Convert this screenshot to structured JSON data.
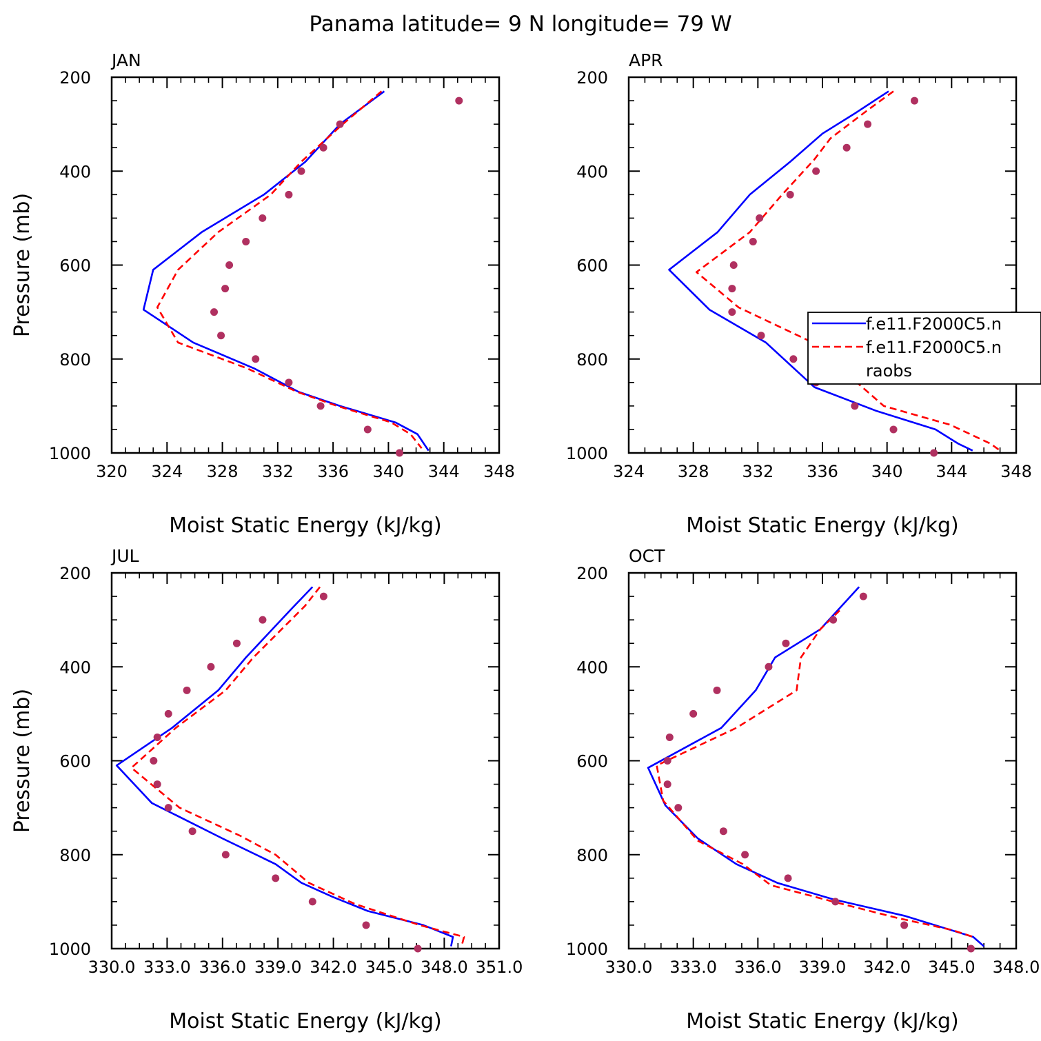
{
  "title": "Panama  latitude= 9 N longitude= 79 W",
  "chart_data": [
    {
      "type": "line",
      "panel": "JAN",
      "xlabel": "Moist Static Energy (kJ/kg)",
      "ylabel": "Pressure (mb)",
      "xlim": [
        320,
        348
      ],
      "ylim": [
        1000,
        200
      ],
      "xticks": [
        320,
        324,
        328,
        332,
        336,
        340,
        344,
        348
      ],
      "xtick_labels": [
        "320",
        "324",
        "328",
        "332",
        "336",
        "340",
        "344",
        "348"
      ],
      "yticks": [
        200,
        400,
        600,
        800,
        1000
      ],
      "ytick_labels": [
        "200",
        "400",
        "600",
        "800",
        "1000"
      ],
      "series": [
        {
          "style": "solid",
          "color": "#0000ff",
          "points": [
            [
              339.7,
              230
            ],
            [
              336.5,
              300
            ],
            [
              334.0,
              380
            ],
            [
              331.0,
              450
            ],
            [
              326.5,
              530
            ],
            [
              323.0,
              610
            ],
            [
              322.3,
              695
            ],
            [
              325.9,
              765
            ],
            [
              330.3,
              820
            ],
            [
              333.5,
              870
            ],
            [
              336.5,
              900
            ],
            [
              340.5,
              935
            ],
            [
              342.1,
              960
            ],
            [
              342.9,
              995
            ]
          ]
        },
        {
          "style": "dashed",
          "color": "#ff0000",
          "points": [
            [
              339.5,
              230
            ],
            [
              336.7,
              300
            ],
            [
              333.7,
              380
            ],
            [
              331.5,
              450
            ],
            [
              327.7,
              530
            ],
            [
              324.8,
              610
            ],
            [
              323.3,
              690
            ],
            [
              324.8,
              765
            ],
            [
              329.8,
              820
            ],
            [
              333.4,
              870
            ],
            [
              336.3,
              900
            ],
            [
              340.2,
              935
            ],
            [
              341.6,
              960
            ],
            [
              342.4,
              990
            ]
          ]
        },
        {
          "style": "dots",
          "color": "#b03060",
          "points": [
            [
              345.1,
              250
            ],
            [
              336.5,
              300
            ],
            [
              335.3,
              350
            ],
            [
              333.7,
              400
            ],
            [
              332.8,
              450
            ],
            [
              330.9,
              500
            ],
            [
              329.7,
              550
            ],
            [
              328.5,
              600
            ],
            [
              328.2,
              650
            ],
            [
              327.4,
              700
            ],
            [
              327.9,
              750
            ],
            [
              330.4,
              800
            ],
            [
              332.8,
              850
            ],
            [
              335.1,
              900
            ],
            [
              338.5,
              950
            ],
            [
              340.8,
              1000
            ]
          ]
        }
      ]
    },
    {
      "type": "line",
      "panel": "APR",
      "xlabel": "Moist Static Energy (kJ/kg)",
      "ylabel": "",
      "xlim": [
        324,
        348
      ],
      "ylim": [
        1000,
        200
      ],
      "xticks": [
        324,
        328,
        332,
        336,
        340,
        344,
        348
      ],
      "xtick_labels": [
        "324",
        "328",
        "332",
        "336",
        "340",
        "344",
        "348"
      ],
      "yticks": [
        200,
        400,
        600,
        800,
        1000
      ],
      "ytick_labels": [
        "200",
        "400",
        "600",
        "800",
        "1000"
      ],
      "series": [
        {
          "style": "solid",
          "color": "#0000ff",
          "points": [
            [
              340.1,
              230
            ],
            [
              338.1,
              275
            ],
            [
              336.0,
              320
            ],
            [
              334.0,
              380
            ],
            [
              331.5,
              450
            ],
            [
              329.5,
              530
            ],
            [
              326.5,
              610
            ],
            [
              329.0,
              695
            ],
            [
              332.5,
              765
            ],
            [
              335.5,
              860
            ],
            [
              339.3,
              910
            ],
            [
              343.0,
              950
            ],
            [
              344.4,
              980
            ],
            [
              345.3,
              995
            ]
          ]
        },
        {
          "style": "dashed",
          "color": "#ff0000",
          "points": [
            [
              340.4,
              230
            ],
            [
              338.8,
              270
            ],
            [
              336.5,
              330
            ],
            [
              335.5,
              375
            ],
            [
              333.5,
              450
            ],
            [
              331.5,
              530
            ],
            [
              328.2,
              615
            ],
            [
              330.8,
              690
            ],
            [
              335.1,
              760
            ],
            [
              337.8,
              840
            ],
            [
              339.8,
              900
            ],
            [
              343.9,
              940
            ],
            [
              346.4,
              980
            ],
            [
              347.0,
              995
            ]
          ]
        },
        {
          "style": "dots",
          "color": "#b03060",
          "points": [
            [
              341.7,
              250
            ],
            [
              338.8,
              300
            ],
            [
              337.5,
              350
            ],
            [
              335.6,
              400
            ],
            [
              334.0,
              450
            ],
            [
              332.1,
              500
            ],
            [
              331.7,
              550
            ],
            [
              330.5,
              600
            ],
            [
              330.4,
              650
            ],
            [
              330.4,
              700
            ],
            [
              332.2,
              750
            ],
            [
              334.2,
              800
            ],
            [
              337.0,
              825
            ],
            [
              335.6,
              850
            ],
            [
              338.0,
              900
            ],
            [
              340.4,
              950
            ],
            [
              342.9,
              1000
            ]
          ]
        }
      ],
      "legend": {
        "placement": "right",
        "entries": [
          "f.e11.F2000C5.n",
          "f.e11.F2000C5.n",
          "raobs"
        ]
      }
    },
    {
      "type": "line",
      "panel": "JUL",
      "xlabel": "Moist Static Energy (kJ/kg)",
      "ylabel": "Pressure (mb)",
      "xlim": [
        330.03,
        351.0
      ],
      "ylim": [
        1000,
        200
      ],
      "xticks": [
        330.03,
        333.03,
        336.03,
        339.03,
        342.03,
        345.03,
        348.03,
        351.0
      ],
      "xtick_labels": [
        "330.0",
        "333.0",
        "336.0",
        "339.0",
        "342.0",
        "345.0",
        "348.0",
        "351.0"
      ],
      "yticks": [
        200,
        400,
        600,
        800,
        1000
      ],
      "ytick_labels": [
        "200",
        "400",
        "600",
        "800",
        "1000"
      ],
      "series": [
        {
          "style": "solid",
          "color": "#0000ff",
          "points": [
            [
              340.9,
              230
            ],
            [
              339.8,
              275
            ],
            [
              337.3,
              380
            ],
            [
              335.8,
              450
            ],
            [
              333.3,
              530
            ],
            [
              330.3,
              610
            ],
            [
              332.2,
              690
            ],
            [
              336.0,
              765
            ],
            [
              338.9,
              820
            ],
            [
              340.3,
              860
            ],
            [
              342.0,
              890
            ],
            [
              343.9,
              920
            ],
            [
              346.9,
              950
            ],
            [
              348.5,
              975
            ],
            [
              348.4,
              995
            ]
          ]
        },
        {
          "style": "dashed",
          "color": "#ff0000",
          "points": [
            [
              341.3,
              230
            ],
            [
              340.5,
              270
            ],
            [
              337.7,
              380
            ],
            [
              336.2,
              450
            ],
            [
              333.5,
              530
            ],
            [
              331.1,
              615
            ],
            [
              333.7,
              700
            ],
            [
              337.0,
              760
            ],
            [
              338.9,
              800
            ],
            [
              340.7,
              860
            ],
            [
              343.2,
              905
            ],
            [
              346.7,
              950
            ],
            [
              349.1,
              975
            ],
            [
              349.0,
              990
            ]
          ]
        },
        {
          "style": "dots",
          "color": "#b03060",
          "points": [
            [
              341.5,
              250
            ],
            [
              338.2,
              300
            ],
            [
              336.8,
              350
            ],
            [
              335.4,
              400
            ],
            [
              334.1,
              450
            ],
            [
              333.1,
              500
            ],
            [
              332.5,
              550
            ],
            [
              332.3,
              600
            ],
            [
              332.5,
              650
            ],
            [
              333.1,
              700
            ],
            [
              334.4,
              750
            ],
            [
              336.2,
              800
            ],
            [
              338.9,
              850
            ],
            [
              340.9,
              900
            ],
            [
              343.8,
              950
            ],
            [
              346.6,
              1000
            ]
          ]
        }
      ]
    },
    {
      "type": "line",
      "panel": "OCT",
      "xlabel": "Moist Static Energy (kJ/kg)",
      "ylabel": "",
      "xlim": [
        330.0,
        348.0
      ],
      "ylim": [
        1000,
        200
      ],
      "xticks": [
        330,
        333,
        336,
        339,
        342,
        345,
        348
      ],
      "xtick_labels": [
        "330.0",
        "333.0",
        "336.0",
        "339.0",
        "342.0",
        "345.0",
        "348.0"
      ],
      "yticks": [
        200,
        400,
        600,
        800,
        1000
      ],
      "ytick_labels": [
        "200",
        "400",
        "600",
        "800",
        "1000"
      ],
      "series": [
        {
          "style": "solid",
          "color": "#0000ff",
          "points": [
            [
              340.7,
              230
            ],
            [
              339.8,
              275
            ],
            [
              338.9,
              320
            ],
            [
              336.8,
              380
            ],
            [
              335.9,
              450
            ],
            [
              334.3,
              530
            ],
            [
              330.9,
              615
            ],
            [
              331.7,
              695
            ],
            [
              333.2,
              765
            ],
            [
              335.0,
              820
            ],
            [
              336.9,
              860
            ],
            [
              339.5,
              895
            ],
            [
              342.8,
              930
            ],
            [
              346.0,
              975
            ],
            [
              346.5,
              995
            ]
          ]
        },
        {
          "style": "dashed",
          "color": "#ff0000",
          "points": [
            [
              339.8,
              280
            ],
            [
              338.9,
              320
            ],
            [
              338.0,
              380
            ],
            [
              337.8,
              450
            ],
            [
              335.0,
              530
            ],
            [
              331.3,
              610
            ],
            [
              331.6,
              685
            ],
            [
              333.2,
              770
            ],
            [
              335.3,
              820
            ],
            [
              336.6,
              865
            ],
            [
              339.5,
              900
            ],
            [
              342.5,
              935
            ],
            [
              345.0,
              960
            ],
            [
              346.0,
              975
            ]
          ]
        },
        {
          "style": "dots",
          "color": "#b03060",
          "points": [
            [
              340.9,
              250
            ],
            [
              339.5,
              300
            ],
            [
              337.3,
              350
            ],
            [
              336.5,
              400
            ],
            [
              334.1,
              450
            ],
            [
              333.0,
              500
            ],
            [
              331.9,
              550
            ],
            [
              331.8,
              600
            ],
            [
              331.8,
              650
            ],
            [
              332.3,
              700
            ],
            [
              334.4,
              750
            ],
            [
              335.4,
              800
            ],
            [
              337.4,
              850
            ],
            [
              339.6,
              900
            ],
            [
              342.8,
              950
            ],
            [
              345.9,
              1000
            ]
          ]
        }
      ]
    }
  ]
}
